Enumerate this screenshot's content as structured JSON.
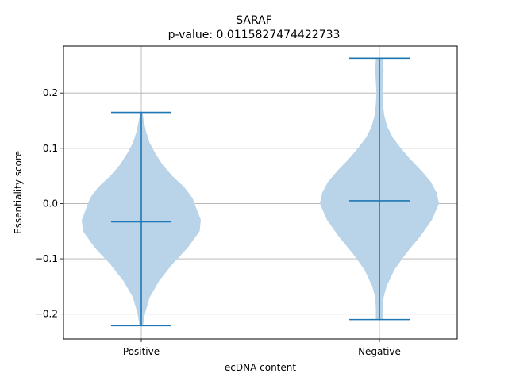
{
  "chart_data": {
    "type": "violin",
    "title": "SARAF",
    "subtitle": "p-value: 0.0115827474422733",
    "xlabel": "ecDNA content",
    "ylabel": "Essentiality score",
    "categories": [
      "Positive",
      "Negative"
    ],
    "ylim": [
      -0.245,
      0.285
    ],
    "yticks": [
      -0.2,
      -0.1,
      0.0,
      0.1,
      0.2
    ],
    "ytick_labels": [
      "−0.2",
      "−0.1",
      "0.0",
      "0.1",
      "0.2"
    ],
    "grid": true,
    "colors": {
      "body": "#b9d3e8",
      "lines": "#1f77b4",
      "grid": "#b0b0b0"
    },
    "violins": [
      {
        "category": "Positive",
        "min": -0.221,
        "max": 0.165,
        "median": -0.033,
        "profile": [
          [
            -0.221,
            0.03
          ],
          [
            -0.2,
            0.06
          ],
          [
            -0.17,
            0.14
          ],
          [
            -0.14,
            0.3
          ],
          [
            -0.11,
            0.52
          ],
          [
            -0.08,
            0.78
          ],
          [
            -0.05,
            0.98
          ],
          [
            -0.03,
            1.0
          ],
          [
            -0.01,
            0.93
          ],
          [
            0.01,
            0.86
          ],
          [
            0.03,
            0.72
          ],
          [
            0.05,
            0.52
          ],
          [
            0.07,
            0.36
          ],
          [
            0.09,
            0.24
          ],
          [
            0.11,
            0.14
          ],
          [
            0.13,
            0.08
          ],
          [
            0.15,
            0.04
          ],
          [
            0.165,
            0.02
          ]
        ]
      },
      {
        "category": "Negative",
        "min": -0.21,
        "max": 0.263,
        "median": 0.005,
        "profile": [
          [
            -0.21,
            0.06
          ],
          [
            -0.19,
            0.06
          ],
          [
            -0.17,
            0.07
          ],
          [
            -0.15,
            0.12
          ],
          [
            -0.12,
            0.25
          ],
          [
            -0.09,
            0.45
          ],
          [
            -0.06,
            0.68
          ],
          [
            -0.03,
            0.88
          ],
          [
            0.0,
            1.0
          ],
          [
            0.02,
            0.96
          ],
          [
            0.04,
            0.86
          ],
          [
            0.06,
            0.7
          ],
          [
            0.08,
            0.52
          ],
          [
            0.1,
            0.36
          ],
          [
            0.12,
            0.22
          ],
          [
            0.14,
            0.13
          ],
          [
            0.16,
            0.08
          ],
          [
            0.18,
            0.06
          ],
          [
            0.2,
            0.05
          ],
          [
            0.22,
            0.06
          ],
          [
            0.24,
            0.07
          ],
          [
            0.263,
            0.06
          ]
        ]
      }
    ]
  }
}
